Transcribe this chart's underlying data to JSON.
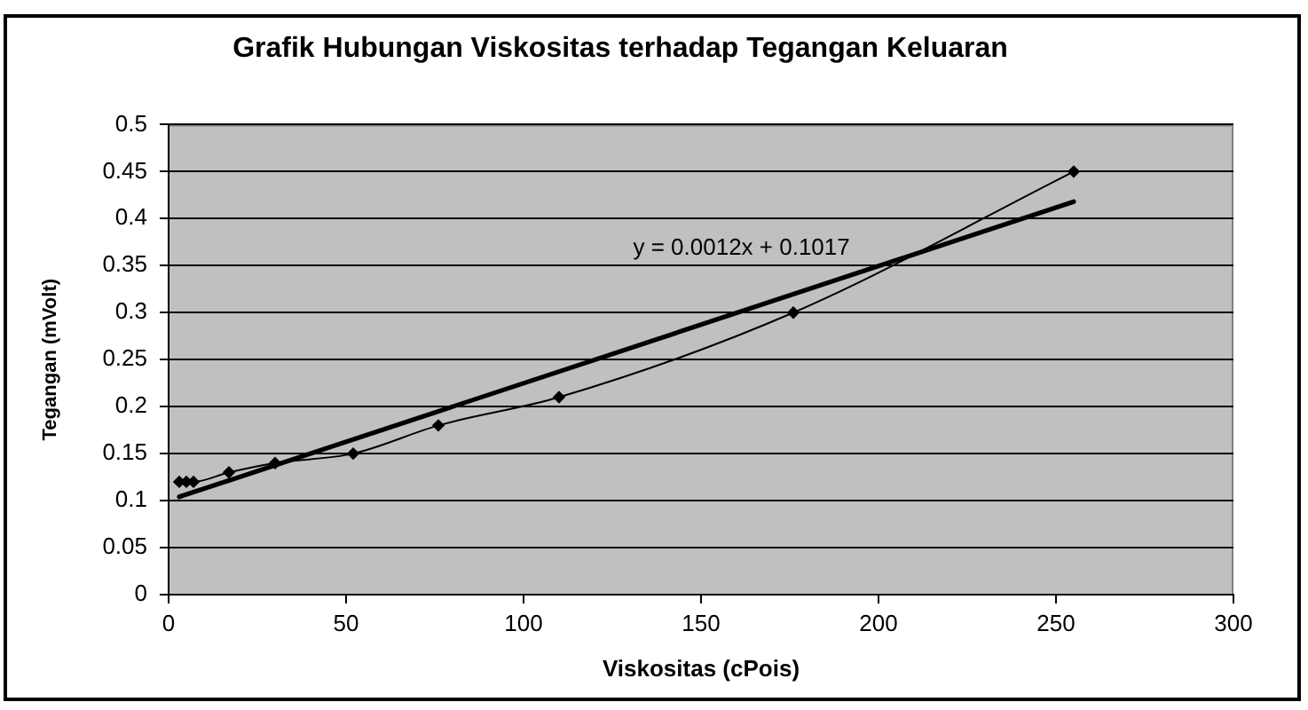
{
  "chart_data": {
    "type": "line",
    "title": "Grafik Hubungan Viskositas terhadap Tegangan Keluaran",
    "xlabel": "Viskositas (cPois)",
    "ylabel": "Tegangan (mVolt)",
    "annotations": [
      "y = 0.0012x + 0.1017"
    ],
    "series": [
      {
        "x": [
          3,
          5,
          7,
          17,
          30,
          52,
          76,
          110,
          176,
          255
        ],
        "values": [
          0.12,
          0.12,
          0.12,
          0.13,
          0.14,
          0.15,
          0.18,
          0.21,
          0.3,
          0.45
        ],
        "color": "#000000"
      },
      {
        "type": "line",
        "x": [
          3,
          255
        ],
        "values": [
          0.104,
          0.418
        ],
        "color": "#000000",
        "marker": "none"
      }
    ],
    "xlim": [
      0,
      300
    ],
    "xticks": [
      0,
      50,
      100,
      150,
      200,
      250,
      300
    ],
    "ylim": [
      0,
      0.5
    ],
    "yticks": [
      0,
      0.05,
      0.1,
      0.15,
      0.2,
      0.25,
      0.3,
      0.35,
      0.4,
      0.45,
      0.5
    ],
    "grid": "y",
    "marker": "diamond"
  }
}
